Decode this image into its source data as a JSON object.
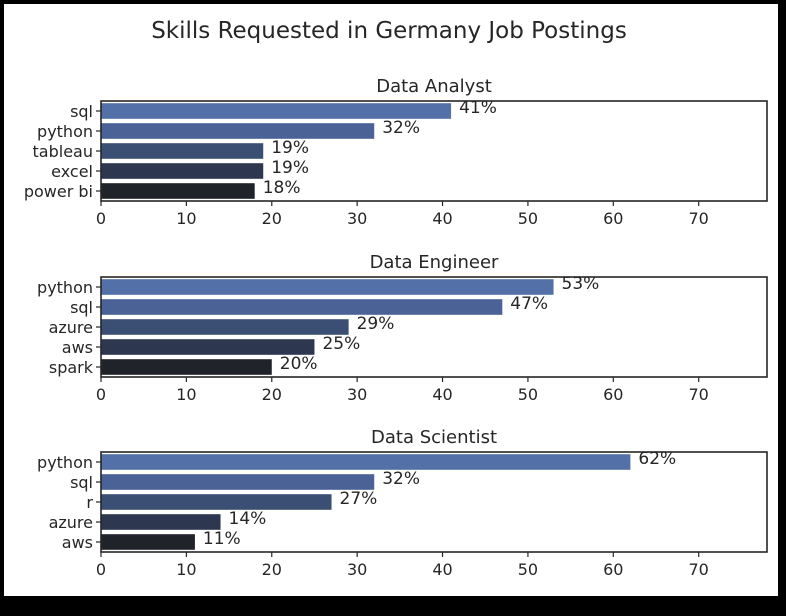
{
  "chart_data": {
    "type": "bar",
    "title": "Skills Requested in Germany Job Postings",
    "orientation": "horizontal",
    "xlim": [
      0,
      78
    ],
    "x_ticks": [
      0,
      10,
      20,
      30,
      40,
      50,
      60,
      70
    ],
    "bar_colors": [
      "#5470a8",
      "#4a6296",
      "#3b4e73",
      "#2d3750",
      "#20232a"
    ],
    "value_suffix": "%",
    "panels": [
      {
        "title": "Data Analyst",
        "categories": [
          "sql",
          "python",
          "tableau",
          "excel",
          "power bi"
        ],
        "values": [
          41,
          32,
          19,
          19,
          18
        ],
        "labels": [
          "41%",
          "32%",
          "19%",
          "19%",
          "18%"
        ]
      },
      {
        "title": "Data Engineer",
        "categories": [
          "python",
          "sql",
          "azure",
          "aws",
          "spark"
        ],
        "values": [
          53,
          47,
          29,
          25,
          20
        ],
        "labels": [
          "53%",
          "47%",
          "29%",
          "25%",
          "20%"
        ]
      },
      {
        "title": "Data Scientist",
        "categories": [
          "python",
          "sql",
          "r",
          "azure",
          "aws"
        ],
        "values": [
          62,
          32,
          27,
          14,
          11
        ],
        "labels": [
          "62%",
          "32%",
          "27%",
          "14%",
          "11%"
        ]
      }
    ]
  }
}
